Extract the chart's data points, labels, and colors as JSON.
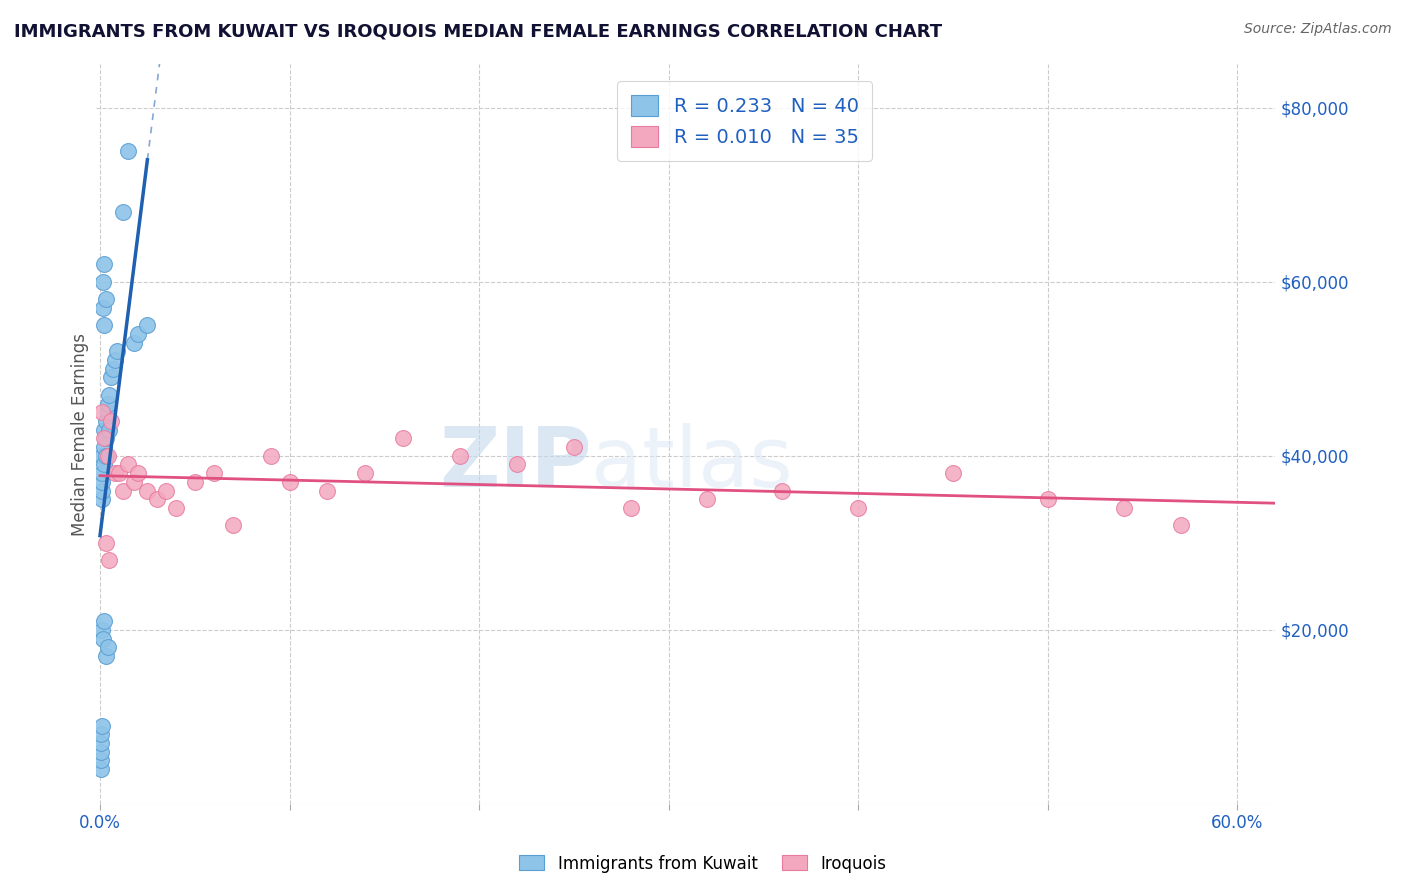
{
  "title": "IMMIGRANTS FROM KUWAIT VS IROQUOIS MEDIAN FEMALE EARNINGS CORRELATION CHART",
  "source": "Source: ZipAtlas.com",
  "ylabel": "Median Female Earnings",
  "xlim": [
    -0.002,
    0.62
  ],
  "ylim": [
    0,
    85000
  ],
  "blue_color": "#8ec4e8",
  "pink_color": "#f4a8bf",
  "blue_edge_color": "#5a9fd4",
  "pink_edge_color": "#e87aa0",
  "blue_line_color": "#2060b0",
  "pink_line_color": "#e05080",
  "legend_blue_label": "R = 0.233   N = 40",
  "legend_pink_label": "R = 0.010   N = 35",
  "legend_label_kuwait": "Immigrants from Kuwait",
  "legend_label_iroquois": "Iroquois",
  "watermark": "ZIPatlas",
  "watermark_color": "#d0dff0",
  "title_color": "#111133",
  "tick_color": "#2060c0",
  "grid_color": "#cccccc",
  "blue_x": [
    0.0003,
    0.0004,
    0.0005,
    0.0006,
    0.0007,
    0.0008,
    0.001,
    0.001,
    0.001,
    0.001,
    0.001,
    0.0015,
    0.0015,
    0.002,
    0.002,
    0.002,
    0.002,
    0.002,
    0.003,
    0.003,
    0.003,
    0.003,
    0.004,
    0.004,
    0.005,
    0.005,
    0.006,
    0.007,
    0.008,
    0.009,
    0.012,
    0.015,
    0.018,
    0.02,
    0.025,
    0.001,
    0.0015,
    0.002,
    0.003,
    0.004
  ],
  "blue_y": [
    4000,
    5000,
    6000,
    7000,
    8000,
    9000,
    35000,
    36000,
    37000,
    38000,
    40000,
    57000,
    60000,
    39000,
    41000,
    43000,
    55000,
    62000,
    40000,
    42000,
    44000,
    58000,
    45000,
    46000,
    43000,
    47000,
    49000,
    50000,
    51000,
    52000,
    68000,
    75000,
    53000,
    54000,
    55000,
    20000,
    19000,
    21000,
    17000,
    18000
  ],
  "pink_x": [
    0.001,
    0.002,
    0.004,
    0.006,
    0.008,
    0.01,
    0.012,
    0.015,
    0.018,
    0.02,
    0.025,
    0.03,
    0.04,
    0.05,
    0.06,
    0.07,
    0.09,
    0.1,
    0.12,
    0.14,
    0.16,
    0.19,
    0.22,
    0.25,
    0.28,
    0.32,
    0.36,
    0.4,
    0.45,
    0.5,
    0.54,
    0.57,
    0.003,
    0.005,
    0.035
  ],
  "pink_y": [
    45000,
    42000,
    40000,
    44000,
    38000,
    38000,
    36000,
    39000,
    37000,
    38000,
    36000,
    35000,
    34000,
    37000,
    38000,
    32000,
    40000,
    37000,
    36000,
    38000,
    42000,
    40000,
    39000,
    41000,
    34000,
    35000,
    36000,
    34000,
    38000,
    35000,
    34000,
    32000,
    30000,
    28000,
    36000
  ]
}
